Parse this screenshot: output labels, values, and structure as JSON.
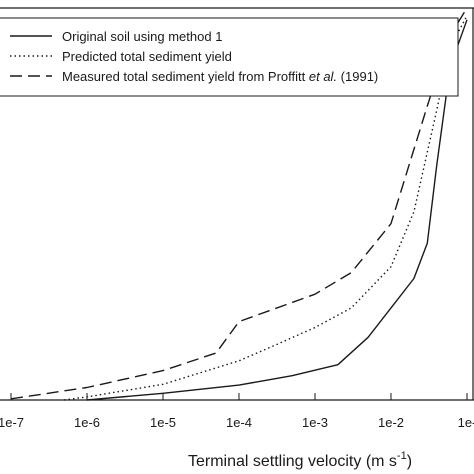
{
  "chart_data": {
    "type": "line",
    "xscale": "log",
    "xlim": [
      1e-07,
      0.1
    ],
    "x_tick_labels": [
      {
        "value": 1e-07,
        "label": "1e-7"
      },
      {
        "value": 1e-06,
        "label": "1e-6"
      },
      {
        "value": 1e-05,
        "label": "1e-5"
      },
      {
        "value": 0.0001,
        "label": "1e-4"
      },
      {
        "value": 0.001,
        "label": "1e-3"
      },
      {
        "value": 0.01,
        "label": "1e-2"
      },
      {
        "value": 0.1,
        "label": "1e-"
      }
    ],
    "xlabel": {
      "main": "Terminal settling velocity (m s",
      "sup": "-1",
      "end": ")"
    },
    "ylabel": "",
    "ylim": [
      0,
      1
    ],
    "grid": false,
    "legend_position": "top-left",
    "series": [
      {
        "name": "Original soil using method 1",
        "style": "solid",
        "color": "#1a1a1a",
        "points": [
          [
            1e-06,
            0.0
          ],
          [
            1e-05,
            0.017
          ],
          [
            0.0001,
            0.038
          ],
          [
            0.0005,
            0.062
          ],
          [
            0.002,
            0.09
          ],
          [
            0.005,
            0.16
          ],
          [
            0.01,
            0.235
          ],
          [
            0.02,
            0.31
          ],
          [
            0.03,
            0.4
          ],
          [
            0.04,
            0.6
          ],
          [
            0.06,
            0.85
          ],
          [
            0.1,
            0.97
          ]
        ]
      },
      {
        "name": "Predicted total sediment yield",
        "style": "dotted",
        "color": "#1a1a1a",
        "points": [
          [
            5e-07,
            0.0
          ],
          [
            1e-06,
            0.008
          ],
          [
            1e-05,
            0.04
          ],
          [
            0.0001,
            0.1
          ],
          [
            0.0003,
            0.14
          ],
          [
            0.001,
            0.185
          ],
          [
            0.003,
            0.235
          ],
          [
            0.01,
            0.34
          ],
          [
            0.02,
            0.48
          ],
          [
            0.04,
            0.74
          ],
          [
            0.06,
            0.9
          ],
          [
            0.1,
            0.98
          ]
        ]
      },
      {
        "name": "Measured total sediment yield from Proffitt et al. (1991)",
        "style": "dashed",
        "color": "#1a1a1a",
        "points": [
          [
            1e-07,
            0.003
          ],
          [
            1e-06,
            0.032
          ],
          [
            1e-05,
            0.075
          ],
          [
            5e-05,
            0.12
          ],
          [
            0.0001,
            0.2
          ],
          [
            0.001,
            0.27
          ],
          [
            0.003,
            0.325
          ],
          [
            0.01,
            0.45
          ],
          [
            0.03,
            0.75
          ],
          [
            0.06,
            0.93
          ],
          [
            0.1,
            1.0
          ]
        ]
      }
    ]
  },
  "legend": {
    "items": [
      {
        "parts": [
          "Original soil using method 1"
        ]
      },
      {
        "parts": [
          "Predicted total sediment yield"
        ]
      },
      {
        "parts": [
          "Measured total sediment yield from Proffitt ",
          "et al.",
          " (1991)"
        ]
      }
    ]
  }
}
